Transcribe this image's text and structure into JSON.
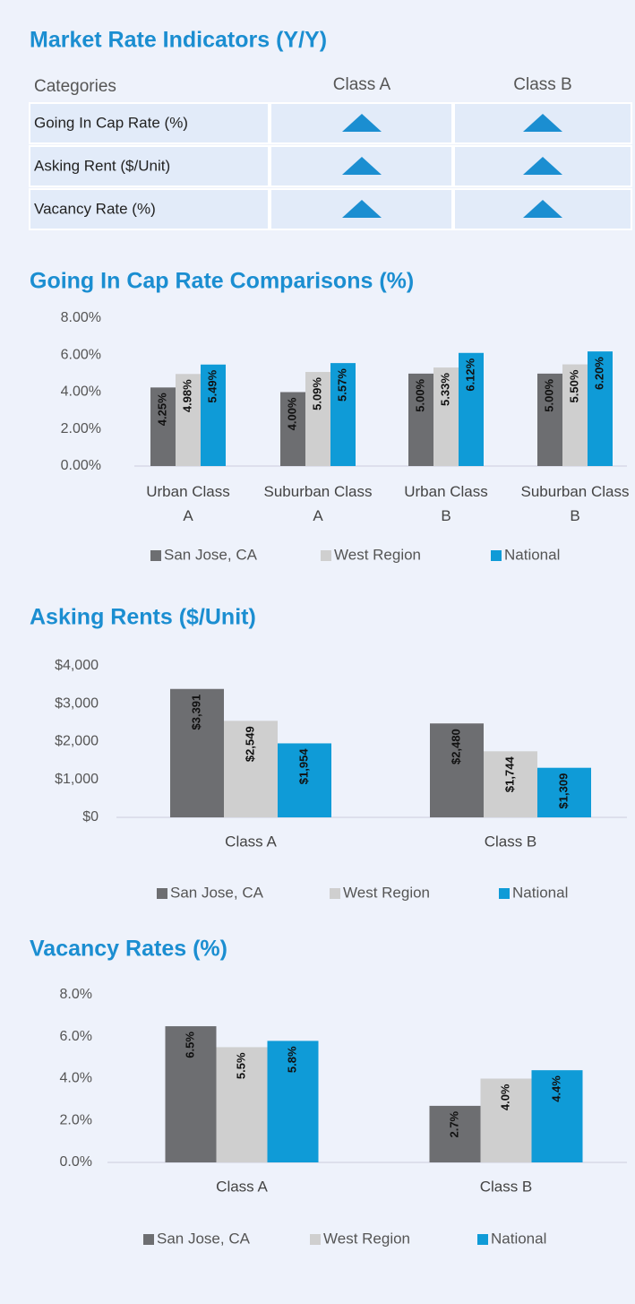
{
  "indicators": {
    "title": "Market Rate Indicators (Y/Y)",
    "header": [
      "Categories",
      "Class A",
      "Class B"
    ],
    "rows": [
      "Going In Cap Rate (%)",
      "Asking Rent ($/Unit)",
      "Vacancy Rate (%)"
    ]
  },
  "chart_data": [
    {
      "type": "bar",
      "title": "Going In Cap Rate Comparisons (%)",
      "categories": [
        "Urban Class A",
        "Suburban Class A",
        "Urban Class B",
        "Suburban Class B"
      ],
      "series": [
        {
          "name": "San Jose, CA",
          "color": "#6d6e71",
          "values": [
            4.25,
            4.0,
            5.0,
            5.0
          ],
          "value_labels": [
            "4.25%",
            "4.00%",
            "5.00%",
            "5.00%"
          ]
        },
        {
          "name": "West Region",
          "color": "#cfcfcf",
          "values": [
            4.98,
            5.09,
            5.33,
            5.5
          ],
          "value_labels": [
            "4.98%",
            "5.09%",
            "5.33%",
            "5.50%"
          ]
        },
        {
          "name": "National",
          "color": "#0f9bd7",
          "values": [
            5.49,
            5.57,
            6.12,
            6.2
          ],
          "value_labels": [
            "5.49%",
            "5.57%",
            "6.12%",
            "6.20%"
          ]
        }
      ],
      "ylim": [
        0,
        8
      ],
      "yticks": [
        {
          "value": 0,
          "label": "0.00%"
        },
        {
          "value": 2,
          "label": "2.00%"
        },
        {
          "value": 4,
          "label": "4.00%"
        },
        {
          "value": 6,
          "label": "6.00%"
        },
        {
          "value": 8,
          "label": "8.00%"
        }
      ],
      "legend": "bottom"
    },
    {
      "type": "bar",
      "title": "Asking Rents ($/Unit)",
      "categories": [
        "Class A",
        "Class B"
      ],
      "series": [
        {
          "name": "San Jose, CA",
          "color": "#6d6e71",
          "values": [
            3391,
            2480
          ],
          "value_labels": [
            "$3,391",
            "$2,480"
          ]
        },
        {
          "name": "West Region",
          "color": "#cfcfcf",
          "values": [
            2549,
            1744
          ],
          "value_labels": [
            "$2,549",
            "$1,744"
          ]
        },
        {
          "name": "National",
          "color": "#0f9bd7",
          "values": [
            1954,
            1309
          ],
          "value_labels": [
            "$1,954",
            "$1,309"
          ]
        }
      ],
      "ylim": [
        0,
        4000
      ],
      "yticks": [
        {
          "value": 0,
          "label": "$0"
        },
        {
          "value": 1000,
          "label": "$1,000"
        },
        {
          "value": 2000,
          "label": "$2,000"
        },
        {
          "value": 3000,
          "label": "$3,000"
        },
        {
          "value": 4000,
          "label": "$4,000"
        }
      ],
      "legend": "bottom"
    },
    {
      "type": "bar",
      "title": "Vacancy Rates (%)",
      "categories": [
        "Class A",
        "Class B"
      ],
      "series": [
        {
          "name": "San Jose, CA",
          "color": "#6d6e71",
          "values": [
            6.5,
            2.7
          ],
          "value_labels": [
            "6.5%",
            "2.7%"
          ]
        },
        {
          "name": "West Region",
          "color": "#cfcfcf",
          "values": [
            5.5,
            4.0
          ],
          "value_labels": [
            "5.5%",
            "4.0%"
          ]
        },
        {
          "name": "National",
          "color": "#0f9bd7",
          "values": [
            5.8,
            4.4
          ],
          "value_labels": [
            "5.8%",
            "4.4%"
          ]
        }
      ],
      "ylim": [
        0,
        8
      ],
      "yticks": [
        {
          "value": 0,
          "label": "0.0%"
        },
        {
          "value": 2,
          "label": "2.0%"
        },
        {
          "value": 4,
          "label": "4.0%"
        },
        {
          "value": 6,
          "label": "6.0%"
        },
        {
          "value": 8,
          "label": "8.0%"
        }
      ],
      "legend": "bottom"
    }
  ]
}
